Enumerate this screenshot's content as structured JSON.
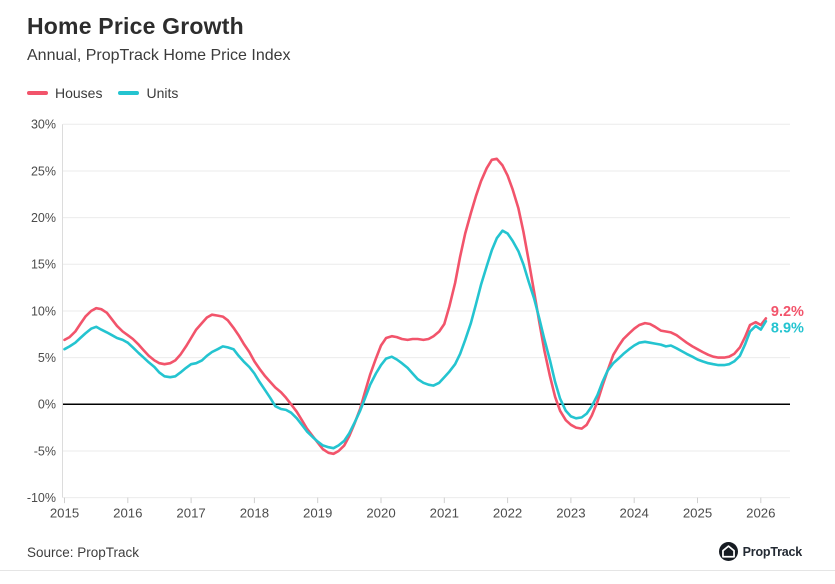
{
  "header": {
    "title": "Home Price Growth",
    "subtitle": "Annual, PropTrack Home Price Index"
  },
  "footer": {
    "source": "Source: PropTrack",
    "logo_text": "PropTrack"
  },
  "colors": {
    "houses": "#F2546B",
    "units": "#24C4D0",
    "grid": "#ebebeb",
    "axis_line": "#dcdcdc",
    "tick": "#cfcfcf",
    "axis_text": "#4c4c4c",
    "zero_line": "#000000",
    "logo_circle": "#161b22"
  },
  "chart_data": {
    "type": "line",
    "title": "Home Price Growth",
    "subtitle": "Annual, PropTrack Home Price Index",
    "xlabel": "",
    "ylabel": "",
    "ylim": [
      -10,
      30
    ],
    "xlim": [
      2015,
      2026.5
    ],
    "grid": true,
    "zero_line": true,
    "legend_position": "top-left",
    "yticks": [
      {
        "v": 30,
        "label": "30%"
      },
      {
        "v": 25,
        "label": "25%"
      },
      {
        "v": 20,
        "label": "20%"
      },
      {
        "v": 15,
        "label": "15%"
      },
      {
        "v": 10,
        "label": "10%"
      },
      {
        "v": 5,
        "label": "5%"
      },
      {
        "v": 0,
        "label": "0%"
      },
      {
        "v": -5,
        "label": "-5%"
      },
      {
        "v": -10,
        "label": "-10%"
      }
    ],
    "xticks": [
      {
        "v": 2015,
        "label": "2015"
      },
      {
        "v": 2016,
        "label": "2016"
      },
      {
        "v": 2017,
        "label": "2017"
      },
      {
        "v": 2018,
        "label": "2018"
      },
      {
        "v": 2019,
        "label": "2019"
      },
      {
        "v": 2020,
        "label": "2020"
      },
      {
        "v": 2021,
        "label": "2021"
      },
      {
        "v": 2022,
        "label": "2022"
      },
      {
        "v": 2023,
        "label": "2023"
      },
      {
        "v": 2024,
        "label": "2024"
      },
      {
        "v": 2025,
        "label": "2025"
      },
      {
        "v": 2026,
        "label": "2026"
      }
    ],
    "x": [
      2015.0,
      2015.08,
      2015.17,
      2015.25,
      2015.33,
      2015.42,
      2015.5,
      2015.58,
      2015.67,
      2015.75,
      2015.83,
      2015.92,
      2016.0,
      2016.08,
      2016.17,
      2016.25,
      2016.33,
      2016.42,
      2016.5,
      2016.58,
      2016.67,
      2016.75,
      2016.83,
      2016.92,
      2017.0,
      2017.08,
      2017.17,
      2017.25,
      2017.33,
      2017.42,
      2017.5,
      2017.58,
      2017.67,
      2017.75,
      2017.83,
      2017.92,
      2018.0,
      2018.08,
      2018.17,
      2018.25,
      2018.33,
      2018.42,
      2018.5,
      2018.58,
      2018.67,
      2018.75,
      2018.83,
      2018.92,
      2019.0,
      2019.08,
      2019.17,
      2019.25,
      2019.33,
      2019.42,
      2019.5,
      2019.58,
      2019.67,
      2019.75,
      2019.83,
      2019.92,
      2020.0,
      2020.08,
      2020.17,
      2020.25,
      2020.33,
      2020.42,
      2020.5,
      2020.58,
      2020.67,
      2020.75,
      2020.83,
      2020.92,
      2021.0,
      2021.08,
      2021.17,
      2021.25,
      2021.33,
      2021.42,
      2021.5,
      2021.58,
      2021.67,
      2021.75,
      2021.83,
      2021.92,
      2022.0,
      2022.08,
      2022.17,
      2022.25,
      2022.33,
      2022.42,
      2022.5,
      2022.58,
      2022.67,
      2022.75,
      2022.83,
      2022.92,
      2023.0,
      2023.08,
      2023.17,
      2023.25,
      2023.33,
      2023.42,
      2023.5,
      2023.58,
      2023.67,
      2023.75,
      2023.83,
      2023.92,
      2024.0,
      2024.08,
      2024.17,
      2024.25,
      2024.33,
      2024.42,
      2024.5,
      2024.58,
      2024.67,
      2024.75,
      2024.83,
      2024.92,
      2025.0,
      2025.08,
      2025.17,
      2025.25,
      2025.33,
      2025.42,
      2025.5,
      2025.58,
      2025.67,
      2025.75,
      2025.83,
      2025.92,
      2026.0,
      2026.08
    ],
    "series": [
      {
        "name": "Houses",
        "color": "#F2546B",
        "end_label": "9.2%",
        "values": [
          6.9,
          7.2,
          7.8,
          8.6,
          9.4,
          10.0,
          10.3,
          10.2,
          9.8,
          9.1,
          8.4,
          7.8,
          7.4,
          7.0,
          6.4,
          5.8,
          5.2,
          4.7,
          4.4,
          4.3,
          4.4,
          4.7,
          5.3,
          6.2,
          7.1,
          8.0,
          8.7,
          9.3,
          9.6,
          9.5,
          9.4,
          9.0,
          8.2,
          7.4,
          6.5,
          5.6,
          4.6,
          3.8,
          3.0,
          2.4,
          1.8,
          1.3,
          0.7,
          0.0,
          -0.8,
          -1.7,
          -2.6,
          -3.4,
          -4.1,
          -4.8,
          -5.2,
          -5.3,
          -5.0,
          -4.4,
          -3.4,
          -2.1,
          -0.5,
          1.4,
          3.2,
          4.9,
          6.3,
          7.1,
          7.3,
          7.2,
          7.0,
          6.9,
          7.0,
          7.0,
          6.9,
          7.0,
          7.3,
          7.8,
          8.6,
          10.5,
          13.0,
          15.8,
          18.3,
          20.5,
          22.3,
          23.9,
          25.3,
          26.2,
          26.3,
          25.6,
          24.5,
          23.0,
          21.0,
          18.5,
          15.5,
          12.0,
          8.8,
          5.8,
          3.0,
          0.8,
          -0.7,
          -1.7,
          -2.2,
          -2.5,
          -2.6,
          -2.2,
          -1.2,
          0.3,
          2.0,
          3.6,
          5.3,
          6.2,
          7.0,
          7.6,
          8.1,
          8.5,
          8.7,
          8.6,
          8.3,
          7.9,
          7.8,
          7.7,
          7.4,
          7.0,
          6.6,
          6.2,
          5.9,
          5.6,
          5.3,
          5.1,
          5.0,
          5.0,
          5.1,
          5.4,
          6.1,
          7.2,
          8.5,
          8.8,
          8.5,
          9.2
        ]
      },
      {
        "name": "Units",
        "color": "#24C4D0",
        "end_label": "8.9%",
        "values": [
          5.9,
          6.2,
          6.6,
          7.1,
          7.6,
          8.1,
          8.3,
          8.0,
          7.7,
          7.4,
          7.1,
          6.9,
          6.6,
          6.1,
          5.5,
          5.0,
          4.5,
          4.0,
          3.4,
          3.0,
          2.9,
          3.0,
          3.4,
          3.9,
          4.3,
          4.4,
          4.7,
          5.2,
          5.6,
          5.9,
          6.2,
          6.1,
          5.9,
          5.2,
          4.6,
          4.0,
          3.3,
          2.4,
          1.5,
          0.7,
          -0.2,
          -0.5,
          -0.6,
          -0.9,
          -1.5,
          -2.2,
          -2.9,
          -3.5,
          -4.0,
          -4.4,
          -4.6,
          -4.7,
          -4.4,
          -3.9,
          -3.1,
          -2.0,
          -0.7,
          0.7,
          2.1,
          3.3,
          4.2,
          4.9,
          5.1,
          4.8,
          4.4,
          3.9,
          3.3,
          2.7,
          2.3,
          2.1,
          2.0,
          2.3,
          2.9,
          3.5,
          4.3,
          5.4,
          6.9,
          8.7,
          10.7,
          12.8,
          14.8,
          16.5,
          17.8,
          18.6,
          18.3,
          17.5,
          16.4,
          15.0,
          13.2,
          11.3,
          9.2,
          7.0,
          4.7,
          2.4,
          0.6,
          -0.7,
          -1.3,
          -1.5,
          -1.4,
          -1.0,
          -0.2,
          1.0,
          2.4,
          3.6,
          4.4,
          4.9,
          5.4,
          5.9,
          6.3,
          6.6,
          6.7,
          6.6,
          6.5,
          6.4,
          6.2,
          6.3,
          6.0,
          5.7,
          5.4,
          5.1,
          4.8,
          4.6,
          4.4,
          4.3,
          4.2,
          4.2,
          4.3,
          4.6,
          5.2,
          6.4,
          7.8,
          8.4,
          8.0,
          8.9
        ]
      }
    ]
  }
}
